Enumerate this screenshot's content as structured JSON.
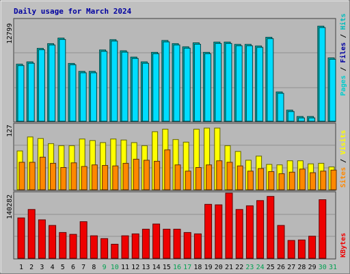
{
  "chart_data": {
    "type": "bar",
    "title": "Daily usage for March 2024",
    "categories": [
      "1",
      "2",
      "3",
      "4",
      "5",
      "6",
      "7",
      "8",
      "9",
      "10",
      "11",
      "12",
      "13",
      "14",
      "15",
      "16",
      "17",
      "18",
      "19",
      "20",
      "21",
      "22",
      "23",
      "24",
      "25",
      "26",
      "27",
      "28",
      "29",
      "30",
      "31"
    ],
    "weekend_days": [
      "9",
      "10",
      "16",
      "17",
      "23",
      "24",
      "30",
      "31"
    ],
    "colors": {
      "background": "#c0c0c0",
      "plot_bg": "#b8b8b8",
      "title": "#0000a0",
      "hits": "#00bbbb",
      "files": "#00ddff",
      "pages": "#00cccc",
      "visits": "#ffff00",
      "sites": "#ff8800",
      "kbytes": "#ee0000",
      "weekday_label": "#000000",
      "weekend_label": "#00a050"
    },
    "panels": [
      {
        "id": "top",
        "ymax_label": "12799",
        "ymax": 12799,
        "legend": [
          {
            "text": "Hits",
            "color": "#00bbbb"
          },
          {
            "text": "Files",
            "color": "#0000a0"
          },
          {
            "text": "Pages",
            "color": "#00cccc"
          }
        ],
        "series": [
          {
            "name": "Hits",
            "values": [
              7200,
              7500,
              9200,
              9800,
              10500,
              7300,
              6300,
              6300,
              9000,
              10300,
              8900,
              8100,
              7500,
              8700,
              10200,
              9800,
              9400,
              9900,
              8700,
              10000,
              10000,
              9700,
              9700,
              9500,
              10600,
              3700,
              1400,
              600,
              600,
              12000,
              8000
            ]
          },
          {
            "name": "Files",
            "values": [
              7200,
              7500,
              9200,
              9800,
              10500,
              7300,
              6300,
              6300,
              9000,
              10300,
              8900,
              8100,
              7500,
              8700,
              10200,
              9800,
              9400,
              9900,
              8700,
              10000,
              10000,
              9700,
              9700,
              9500,
              10600,
              3700,
              1400,
              600,
              600,
              12000,
              8000
            ]
          }
        ]
      },
      {
        "id": "middle",
        "ymax_label": "127",
        "ymax": 127,
        "legend": [
          {
            "text": "Visits",
            "color": "#ffff00"
          },
          {
            "text": "Sites",
            "color": "#ff8800"
          }
        ],
        "series": [
          {
            "name": "Visits",
            "values": [
              75,
              102,
              99,
              89,
              85,
              85,
              98,
              95,
              91,
              98,
              96,
              91,
              85,
              112,
              117,
              97,
              92,
              117,
              119,
              119,
              85,
              74,
              57,
              65,
              49,
              48,
              56,
              56,
              50,
              51,
              44
            ]
          },
          {
            "name": "Sites",
            "values": [
              53,
              53,
              63,
              51,
              43,
              52,
              45,
              48,
              47,
              46,
              51,
              59,
              57,
              55,
              77,
              48,
              36,
              43,
              48,
              56,
              53,
              46,
              36,
              41,
              35,
              31,
              34,
              40,
              33,
              36,
              38
            ]
          }
        ]
      },
      {
        "id": "bottom",
        "ymax_label": "140282",
        "ymax": 140282,
        "legend": [
          {
            "text": "KBytes",
            "color": "#ee0000"
          }
        ],
        "series": [
          {
            "name": "KBytes",
            "values": [
              86000,
              104000,
              82000,
              70000,
              55000,
              51000,
              78000,
              48000,
              42000,
              30000,
              48000,
              52000,
              62000,
              73000,
              62000,
              62000,
              55000,
              52000,
              115000,
              114000,
              139000,
              104000,
              112000,
              123000,
              132000,
              70000,
              38000,
              39000,
              47000,
              125000,
              0
            ]
          }
        ]
      }
    ]
  }
}
